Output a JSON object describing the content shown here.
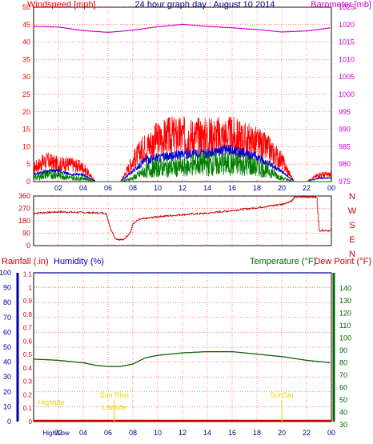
{
  "colors": {
    "wind": "#ff0000",
    "wind_avg": "#0000cc",
    "wind_low": "#008000",
    "baro": "#cc00cc",
    "dir": "#cc0000",
    "humidity": "#0000aa",
    "temperature": "#006600",
    "rain_axis": "#cc0000",
    "dewpoint": "#cc0000",
    "sun": "#e8d800",
    "grid": "#ff0000"
  },
  "chart_data": [
    {
      "type": "line",
      "title": "24 hour graph day : August 10 2014",
      "ylabel": "Windspeed [mph]",
      "y2label": "Barometer [mb]",
      "x_ticks": [
        "02",
        "04",
        "06",
        "08",
        "10",
        "12",
        "14",
        "16",
        "18",
        "20",
        "22",
        "00"
      ],
      "ylim": [
        0,
        50
      ],
      "y_ticks": [
        "0",
        "5",
        "10",
        "15",
        "20",
        "25",
        "30",
        "35",
        "40",
        "45",
        "50"
      ],
      "y2lim": [
        975,
        1025
      ],
      "y2_ticks": [
        "975",
        "980",
        "985",
        "990",
        "995",
        "1000",
        "1005",
        "1010",
        "1015",
        "1020",
        "1025"
      ],
      "series": [
        {
          "name": "Windspeed [mph]",
          "x": [
            0,
            1,
            2,
            3,
            4,
            5,
            6,
            7,
            8,
            9,
            10,
            11,
            12,
            13,
            14,
            15,
            16,
            17,
            18,
            19,
            20,
            21,
            22,
            23,
            24
          ],
          "values": [
            4,
            6,
            5,
            5,
            4,
            0,
            0,
            0,
            6,
            10,
            12,
            13,
            13,
            13,
            13,
            13,
            13,
            12,
            11,
            9,
            6,
            0,
            0,
            2,
            2
          ]
        },
        {
          "name": "Average Windspeed",
          "x": [
            0,
            1,
            2,
            3,
            4,
            5,
            6,
            7,
            8,
            9,
            10,
            11,
            12,
            13,
            14,
            15,
            16,
            17,
            18,
            19,
            20,
            21,
            22,
            23,
            24
          ],
          "values": [
            2,
            3,
            3,
            2,
            2,
            0,
            0,
            0,
            3,
            6,
            7,
            7,
            8,
            8,
            8,
            9,
            9,
            8,
            7,
            5,
            3,
            0,
            0,
            1,
            1
          ]
        },
        {
          "name": "Minimum Windspeed",
          "x": [
            0,
            1,
            2,
            3,
            4,
            5,
            6,
            7,
            8,
            9,
            10,
            11,
            12,
            13,
            14,
            15,
            16,
            17,
            18,
            19,
            20,
            21,
            22,
            23,
            24
          ],
          "values": [
            1,
            2,
            2,
            1,
            1,
            0,
            0,
            0,
            1,
            3,
            4,
            4,
            4,
            5,
            5,
            5,
            5,
            5,
            4,
            3,
            1,
            0,
            0,
            0,
            0
          ]
        },
        {
          "name": "Barometer [mb]",
          "x": [
            0,
            2,
            4,
            6,
            8,
            10,
            12,
            14,
            16,
            18,
            20,
            22,
            24
          ],
          "values": [
            1019.5,
            1019.3,
            1018.3,
            1017.8,
            1018.4,
            1019.4,
            1020.1,
            1019.5,
            1019.1,
            1018.6,
            1017.9,
            1018.2,
            1019.1
          ]
        }
      ]
    },
    {
      "type": "line",
      "right_labels": [
        "N",
        "W",
        "S",
        "E",
        "N"
      ],
      "ylim": [
        0,
        360
      ],
      "y_ticks": [
        "0",
        "90",
        "180",
        "270",
        "360"
      ],
      "series": [
        {
          "name": "Wind direction",
          "x": [
            0,
            2,
            4,
            5.8,
            6.2,
            6.6,
            7.2,
            7.8,
            8,
            8.5,
            10,
            12,
            14,
            16,
            18,
            20,
            20.8,
            21,
            22,
            22.8,
            23,
            24
          ],
          "values": [
            235,
            245,
            240,
            235,
            120,
            50,
            40,
            100,
            160,
            190,
            210,
            225,
            235,
            255,
            275,
            300,
            325,
            350,
            355,
            350,
            110,
            110
          ]
        }
      ]
    },
    {
      "type": "line",
      "ylabel": "Rainfall (.in)",
      "ylabel2": "Humidity (%)",
      "y2label": "Temperature (°F)",
      "y3label": "Dew Point (°F)",
      "x_ticks": [
        "02",
        "04",
        "06",
        "08",
        "10",
        "12",
        "14",
        "16",
        "18",
        "20",
        "22",
        "00"
      ],
      "x_extra_label": "High/Low",
      "ylim": [
        0,
        100
      ],
      "y_ticks": [
        "0",
        "10",
        "20",
        "30",
        "40",
        "50",
        "60",
        "70",
        "80",
        "90",
        "100"
      ],
      "rain_ticks": [
        "0",
        "0.1",
        "0.2",
        "0.3",
        "0.4",
        "0.5",
        "0.6",
        "0.7",
        "0.8",
        "0.9",
        "1",
        "1.1"
      ],
      "y2lim": [
        30,
        150
      ],
      "y2_ticks": [
        "30",
        "40",
        "50",
        "60",
        "70",
        "80",
        "90",
        "100",
        "110",
        "120",
        "130",
        "140"
      ],
      "annotations": [
        {
          "text": "Hightide",
          "x": 1
        },
        {
          "text": "Sun Rise",
          "x": 6.5
        },
        {
          "text": "Lowtide",
          "x": 6.5
        },
        {
          "text": "SunSet",
          "x": 20
        }
      ],
      "series": [
        {
          "name": "Temperature (°F)",
          "x": [
            0,
            2,
            4,
            5,
            6,
            7,
            8,
            9,
            10,
            12,
            14,
            16,
            18,
            20,
            22,
            24
          ],
          "values": [
            83,
            82,
            80,
            78,
            77,
            77,
            79,
            84,
            86,
            88,
            89,
            89,
            87,
            85,
            82,
            80
          ]
        },
        {
          "name": "Dew Point (°F)",
          "x": [
            0,
            2,
            4,
            5,
            6,
            7,
            8,
            9,
            10,
            12,
            14,
            16,
            18,
            20,
            22,
            24
          ],
          "values": [
            83,
            82,
            80,
            78,
            77,
            77,
            79,
            84,
            86,
            88,
            89,
            89,
            87,
            85,
            82,
            80
          ]
        },
        {
          "name": "Humidity (%)",
          "x": [
            0,
            24
          ],
          "values": [
            100,
            100
          ]
        },
        {
          "name": "Rainfall (.in)",
          "x": [
            0,
            24
          ],
          "values": [
            0,
            0
          ]
        }
      ]
    }
  ]
}
